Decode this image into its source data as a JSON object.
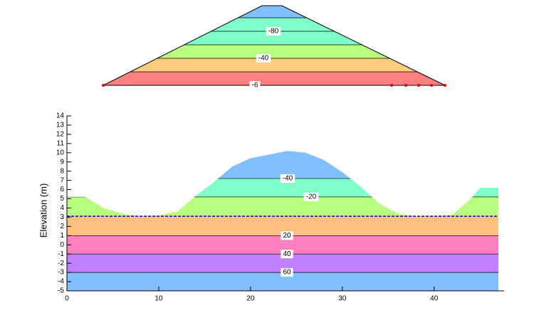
{
  "chart_data": [
    {
      "type": "embankment",
      "levels": [
        -80,
        -40,
        -6
      ],
      "band_colors": [
        "#80c0ff",
        "#80ffc8",
        "#80ffc8",
        "#b8ff80",
        "#ffcc80",
        "#ff8080"
      ]
    },
    {
      "type": "section",
      "ylabel": "Elevation (m)",
      "xlim": [
        0,
        47
      ],
      "ylim": [
        -5,
        14
      ],
      "xticks": [
        0,
        10,
        20,
        30,
        40
      ],
      "yticks": [
        -5,
        -4,
        -3,
        -2,
        -1,
        0,
        1,
        2,
        3,
        4,
        5,
        6,
        7,
        8,
        9,
        10,
        11,
        12,
        13,
        14
      ],
      "profile": {
        "x": [
          0,
          2,
          4,
          6,
          8,
          10,
          12,
          14,
          16,
          18,
          20,
          22,
          24,
          26,
          28,
          30,
          32,
          34,
          36,
          38,
          40,
          42,
          44,
          45,
          47
        ],
        "y": [
          5.2,
          5.2,
          4.0,
          3.4,
          3.1,
          3.2,
          3.6,
          5.3,
          6.8,
          8.5,
          9.4,
          9.8,
          10.2,
          10.0,
          9.2,
          7.9,
          6.3,
          4.5,
          3.4,
          3.1,
          3.1,
          3.3,
          5.0,
          6.2,
          6.2
        ]
      },
      "water_table": 3.1,
      "contours": [
        {
          "level": -40,
          "y": 7.2
        },
        {
          "level": -20,
          "y": 5.2
        },
        {
          "level": 20,
          "y": 1
        },
        {
          "level": 40,
          "y": -1
        },
        {
          "level": 60,
          "y": -3
        }
      ],
      "band_colors": [
        "#80c0ff",
        "#80ffc8",
        "#b8ff80",
        "#ffc080",
        "#ff80c0",
        "#c080ff",
        "#80c0ff"
      ],
      "water_color": "#0000cc"
    }
  ]
}
